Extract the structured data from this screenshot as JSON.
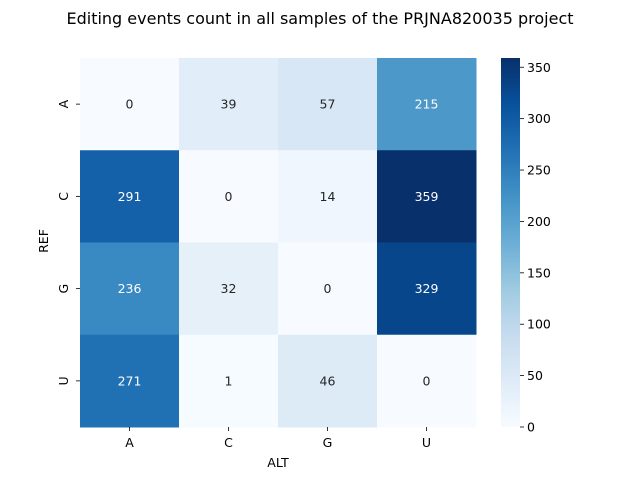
{
  "chart_data": {
    "type": "heatmap",
    "title": "Editing events count in all samples of the PRJNA820035 project",
    "xlabel": "ALT",
    "ylabel": "REF",
    "x_categories": [
      "A",
      "C",
      "G",
      "U"
    ],
    "y_categories": [
      "A",
      "C",
      "G",
      "U"
    ],
    "values": [
      [
        0,
        39,
        57,
        215
      ],
      [
        291,
        0,
        14,
        359
      ],
      [
        236,
        32,
        0,
        329
      ],
      [
        271,
        1,
        46,
        0
      ]
    ],
    "colormap": "Blues",
    "color_range": [
      0,
      359
    ],
    "colorbar_ticks": [
      0,
      50,
      100,
      150,
      200,
      250,
      300,
      350
    ],
    "annotations": true
  }
}
